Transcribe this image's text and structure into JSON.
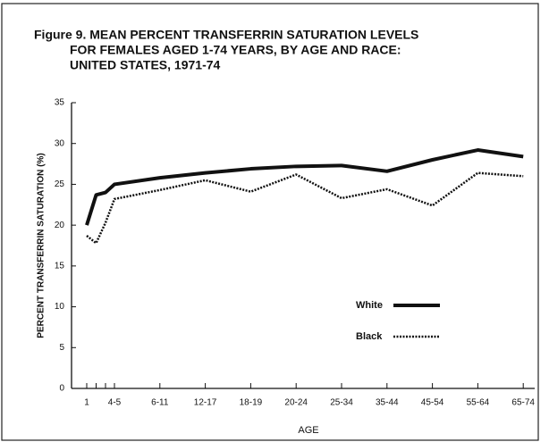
{
  "chart_data": {
    "type": "line",
    "title": [
      "Figure 9. MEAN PERCENT TRANSFERRIN SATURATION LEVELS",
      "FOR FEMALES AGED 1-74 YEARS, BY AGE AND RACE:",
      "UNITED STATES, 1971-74"
    ],
    "x_label": "AGE",
    "y_label": "PERCENT TRANSFERRIN SATURATION (%)",
    "categories": [
      "1",
      null,
      null,
      "4-5",
      "6-11",
      "12-17",
      "18-19",
      "20-24",
      "25-34",
      "35-44",
      "45-54",
      "55-64",
      "65-74"
    ],
    "series": [
      {
        "name": "White",
        "color": "#111111",
        "line_style": "solid",
        "values": [
          20,
          23.7,
          24,
          25,
          25.8,
          26.4,
          26.9,
          27.2,
          27.3,
          26.6,
          28,
          29.2,
          28.4
        ]
      },
      {
        "name": "Black",
        "color": "#111111",
        "line_style": "dotted",
        "values": [
          18.7,
          17.8,
          20.3,
          23.2,
          24.3,
          25.5,
          24.1,
          26.2,
          23.3,
          24.4,
          22.4,
          26.4,
          26
        ]
      }
    ],
    "ylim": [
      0,
      35
    ],
    "yticks": [
      0,
      5,
      10,
      15,
      20,
      25,
      30,
      35
    ],
    "legend": "inside-right"
  }
}
